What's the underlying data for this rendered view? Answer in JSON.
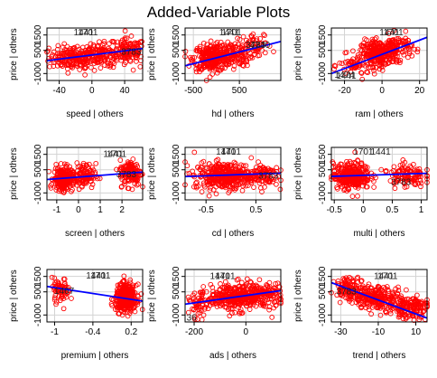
{
  "figure": {
    "title": "Added-Variable Plots"
  },
  "colors": {
    "points": "#ff0000",
    "fit_line": "#0000ff",
    "grid": "#d3d3d3",
    "frame": "#000000"
  },
  "chart_data": [
    {
      "type": "scatter",
      "xlabel": "speed | others",
      "ylabel": "price | others",
      "x_ticks": [
        -40,
        0,
        40
      ],
      "y_ticks": [
        -1000,
        500,
        1500
      ],
      "xlim": [
        -55,
        62
      ],
      "ylim": [
        -1450,
        1950
      ],
      "cloud": [
        {
          "cx": -25,
          "cy": 0,
          "sx": 14,
          "sy": 370,
          "n": 150
        },
        {
          "cx": 10,
          "cy": 200,
          "sx": 18,
          "sy": 380,
          "n": 180
        },
        {
          "cx": 45,
          "cy": 450,
          "sx": 10,
          "sy": 400,
          "n": 120
        }
      ],
      "fit": {
        "x": [
          -55,
          62
        ],
        "y": [
          -170,
          620
        ]
      },
      "point_labels": [
        {
          "text": "1441",
          "x": -10,
          "y": 1650
        },
        {
          "text": "1701",
          "x": -5,
          "y": 1650
        },
        {
          "text": "3783",
          "x": 48,
          "y": 400
        }
      ]
    },
    {
      "type": "scatter",
      "xlabel": "hd | others",
      "ylabel": "price | others",
      "x_ticks": [
        -500,
        500
      ],
      "y_ticks": [
        -1000,
        500,
        1500
      ],
      "xlim": [
        -680,
        1400
      ],
      "ylim": [
        -1450,
        1950
      ],
      "cloud": [
        {
          "cx": -100,
          "cy": 0,
          "sx": 200,
          "sy": 430,
          "n": 260
        },
        {
          "cx": 300,
          "cy": 300,
          "sx": 250,
          "sy": 420,
          "n": 150
        },
        {
          "cx": 900,
          "cy": 800,
          "sx": 150,
          "sy": 400,
          "n": 40
        }
      ],
      "fit": {
        "x": [
          -680,
          1400
        ],
        "y": [
          -500,
          1080
        ]
      },
      "point_labels": [
        {
          "text": "1441",
          "x": 280,
          "y": 1650
        },
        {
          "text": "1701",
          "x": 330,
          "y": 1650
        },
        {
          "text": "3783",
          "x": 850,
          "y": 850
        },
        {
          "text": "4740",
          "x": 950,
          "y": 850
        }
      ]
    },
    {
      "type": "scatter",
      "xlabel": "ram | others",
      "ylabel": "price | others",
      "x_ticks": [
        -20,
        0,
        20
      ],
      "y_ticks": [
        -1000,
        500,
        1500
      ],
      "xlim": [
        -27,
        24
      ],
      "ylim": [
        -1450,
        1950
      ],
      "cloud": [
        {
          "cx": -2,
          "cy": 300,
          "sx": 4.5,
          "sy": 420,
          "n": 260
        },
        {
          "cx": 8,
          "cy": 700,
          "sx": 4,
          "sy": 400,
          "n": 100
        },
        {
          "cx": -15,
          "cy": -500,
          "sx": 4,
          "sy": 350,
          "n": 50
        }
      ],
      "fit": {
        "x": [
          -27,
          24
        ],
        "y": [
          -1000,
          1350
        ]
      },
      "point_labels": [
        {
          "text": "1441",
          "x": 4,
          "y": 1650
        },
        {
          "text": "1701",
          "x": 6,
          "y": 1650
        },
        {
          "text": "1474",
          "x": -20,
          "y": -1100
        },
        {
          "text": "1441",
          "x": -19,
          "y": -1150
        }
      ]
    },
    {
      "type": "scatter",
      "xlabel": "screen | others",
      "ylabel": "price | others",
      "x_ticks": [
        -1,
        0,
        1,
        2
      ],
      "y_ticks": [
        -1000,
        500,
        1500
      ],
      "xlim": [
        -1.45,
        2.95
      ],
      "ylim": [
        -1450,
        1950
      ],
      "cloud": [
        {
          "cx": -0.7,
          "cy": -100,
          "sx": 0.22,
          "sy": 380,
          "n": 220
        },
        {
          "cx": 0.2,
          "cy": 100,
          "sx": 0.3,
          "sy": 400,
          "n": 110
        },
        {
          "cx": 2.4,
          "cy": 300,
          "sx": 0.25,
          "sy": 420,
          "n": 150
        }
      ],
      "fit": {
        "x": [
          -1.45,
          2.95
        ],
        "y": [
          -130,
          350
        ]
      },
      "point_labels": [
        {
          "text": "1441",
          "x": 1.6,
          "y": 1500
        },
        {
          "text": "1701",
          "x": 1.75,
          "y": 1500
        },
        {
          "text": "3783",
          "x": 2.2,
          "y": 200
        }
      ]
    },
    {
      "type": "scatter",
      "xlabel": "cd | others",
      "ylabel": "price | others",
      "x_ticks": [
        -0.5,
        0.5
      ],
      "y_ticks": [
        -1000,
        500,
        1500
      ],
      "xlim": [
        -0.92,
        1.0
      ],
      "ylim": [
        -1450,
        1950
      ],
      "cloud": [
        {
          "cx": -0.1,
          "cy": 100,
          "sx": 0.32,
          "sy": 430,
          "n": 380
        },
        {
          "cx": 0.65,
          "cy": 200,
          "sx": 0.15,
          "sy": 380,
          "n": 80
        }
      ],
      "fit": {
        "x": [
          -0.92,
          1.0
        ],
        "y": [
          60,
          280
        ]
      },
      "point_labels": [
        {
          "text": "1441",
          "x": -0.1,
          "y": 1650
        },
        {
          "text": "1701",
          "x": 0.0,
          "y": 1650
        },
        {
          "text": "3783",
          "x": 0.75,
          "y": 100
        }
      ]
    },
    {
      "type": "scatter",
      "xlabel": "multi | others",
      "ylabel": "price | others",
      "x_ticks": [
        -0.5,
        0,
        0.5,
        1.0
      ],
      "y_ticks": [
        -1000,
        500,
        1500
      ],
      "xlim": [
        -0.55,
        1.1
      ],
      "ylim": [
        -1450,
        1950
      ],
      "cloud": [
        {
          "cx": -0.2,
          "cy": 100,
          "sx": 0.16,
          "sy": 430,
          "n": 300
        },
        {
          "cx": 0.75,
          "cy": 150,
          "sx": 0.15,
          "sy": 400,
          "n": 110
        }
      ],
      "fit": {
        "x": [
          -0.55,
          1.1
        ],
        "y": [
          70,
          270
        ]
      },
      "point_labels": [
        {
          "text": "1701",
          "x": 0.0,
          "y": 1650
        },
        {
          "text": "1441",
          "x": 0.3,
          "y": 1650
        },
        {
          "text": "3783",
          "x": 0.65,
          "y": -300
        }
      ]
    },
    {
      "type": "scatter",
      "xlabel": "premium | others",
      "ylabel": "price | others",
      "x_ticks": [
        -1.0,
        -0.4,
        0.2
      ],
      "y_ticks": [
        -1000,
        500,
        1500
      ],
      "xlim": [
        -1.12,
        0.38
      ],
      "ylim": [
        -1450,
        1950
      ],
      "cloud": [
        {
          "cx": -0.9,
          "cy": 600,
          "sx": 0.07,
          "sy": 380,
          "n": 70
        },
        {
          "cx": 0.12,
          "cy": 100,
          "sx": 0.08,
          "sy": 430,
          "n": 380
        }
      ],
      "fit": {
        "x": [
          -1.12,
          0.38
        ],
        "y": [
          850,
          -100
        ]
      },
      "point_labels": [
        {
          "text": "1441",
          "x": -0.35,
          "y": 1550
        },
        {
          "text": "1701",
          "x": -0.28,
          "y": 1550
        },
        {
          "text": "1467",
          "x": -0.85,
          "y": 550
        }
      ]
    },
    {
      "type": "scatter",
      "xlabel": "ads | others",
      "ylabel": "price | others",
      "x_ticks": [
        -200,
        0
      ],
      "y_ticks": [
        -1000,
        500,
        1500
      ],
      "xlim": [
        -235,
        135
      ],
      "ylim": [
        -1450,
        1950
      ],
      "cloud": [
        {
          "cx": -40,
          "cy": 150,
          "sx": 55,
          "sy": 430,
          "n": 330
        },
        {
          "cx": 70,
          "cy": 300,
          "sx": 35,
          "sy": 400,
          "n": 120
        },
        {
          "cx": -180,
          "cy": -400,
          "sx": 20,
          "sy": 400,
          "n": 50
        }
      ],
      "fit": {
        "x": [
          -235,
          135
        ],
        "y": [
          -300,
          580
        ]
      },
      "point_labels": [
        {
          "text": "1441",
          "x": -100,
          "y": 1500
        },
        {
          "text": "1701",
          "x": -80,
          "y": 1500
        },
        {
          "text": "36",
          "x": -210,
          "y": -1200
        }
      ]
    },
    {
      "type": "scatter",
      "xlabel": "trend | others",
      "ylabel": "price | others",
      "x_ticks": [
        -30,
        -10,
        10
      ],
      "y_ticks": [
        -1000,
        500,
        1500
      ],
      "xlim": [
        -35,
        16
      ],
      "ylim": [
        -1450,
        1950
      ],
      "cloud": [
        {
          "cx": -25,
          "cy": 700,
          "sx": 4,
          "sy": 380,
          "n": 120
        },
        {
          "cx": -10,
          "cy": 100,
          "sx": 6,
          "sy": 380,
          "n": 220
        },
        {
          "cx": 7,
          "cy": -500,
          "sx": 5,
          "sy": 360,
          "n": 150
        }
      ],
      "fit": {
        "x": [
          -35,
          16
        ],
        "y": [
          1100,
          -1200
        ]
      },
      "point_labels": [
        {
          "text": "1441",
          "x": -7,
          "y": 1500
        },
        {
          "text": "1701",
          "x": -5,
          "y": 1500
        },
        {
          "text": "3783",
          "x": -27,
          "y": 500
        }
      ]
    }
  ]
}
